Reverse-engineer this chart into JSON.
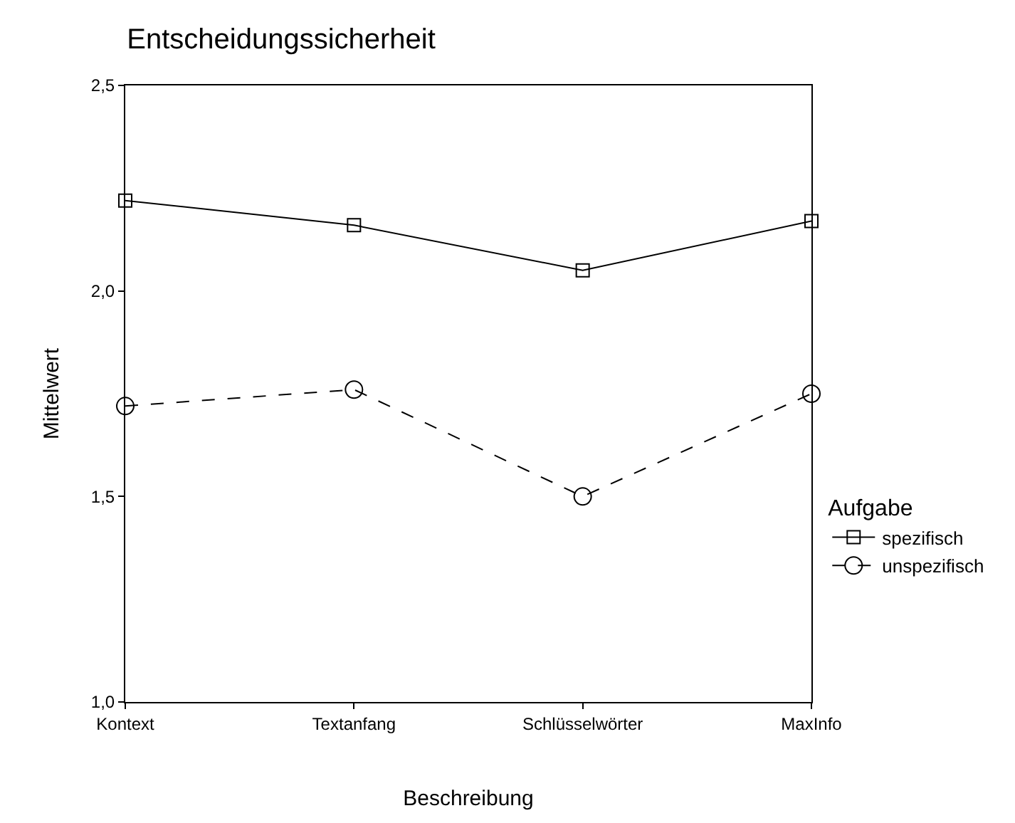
{
  "chart_data": {
    "type": "line",
    "title": "Entscheidungssicherheit",
    "xlabel": "Beschreibung",
    "ylabel": "Mittelwert",
    "legend_title": "Aufgabe",
    "categories": [
      "Kontext",
      "Textanfang",
      "Schlüsselwörter",
      "MaxInfo"
    ],
    "series": [
      {
        "name": "spezifisch",
        "color": "#000000",
        "values": [
          2.22,
          2.16,
          2.05,
          2.17
        ],
        "marker": "square",
        "line_style": "solid"
      },
      {
        "name": "unspezifisch",
        "color": "#000000",
        "values": [
          1.72,
          1.76,
          1.5,
          1.75
        ],
        "marker": "circle",
        "line_style": "dashed"
      }
    ],
    "ylim": [
      1.0,
      2.5
    ],
    "yticks": [
      {
        "value": 1.0,
        "label": "1,0"
      },
      {
        "value": 1.5,
        "label": "1,5"
      },
      {
        "value": 2.0,
        "label": "2,0"
      },
      {
        "value": 2.5,
        "label": "2,5"
      }
    ],
    "legend": "right"
  }
}
